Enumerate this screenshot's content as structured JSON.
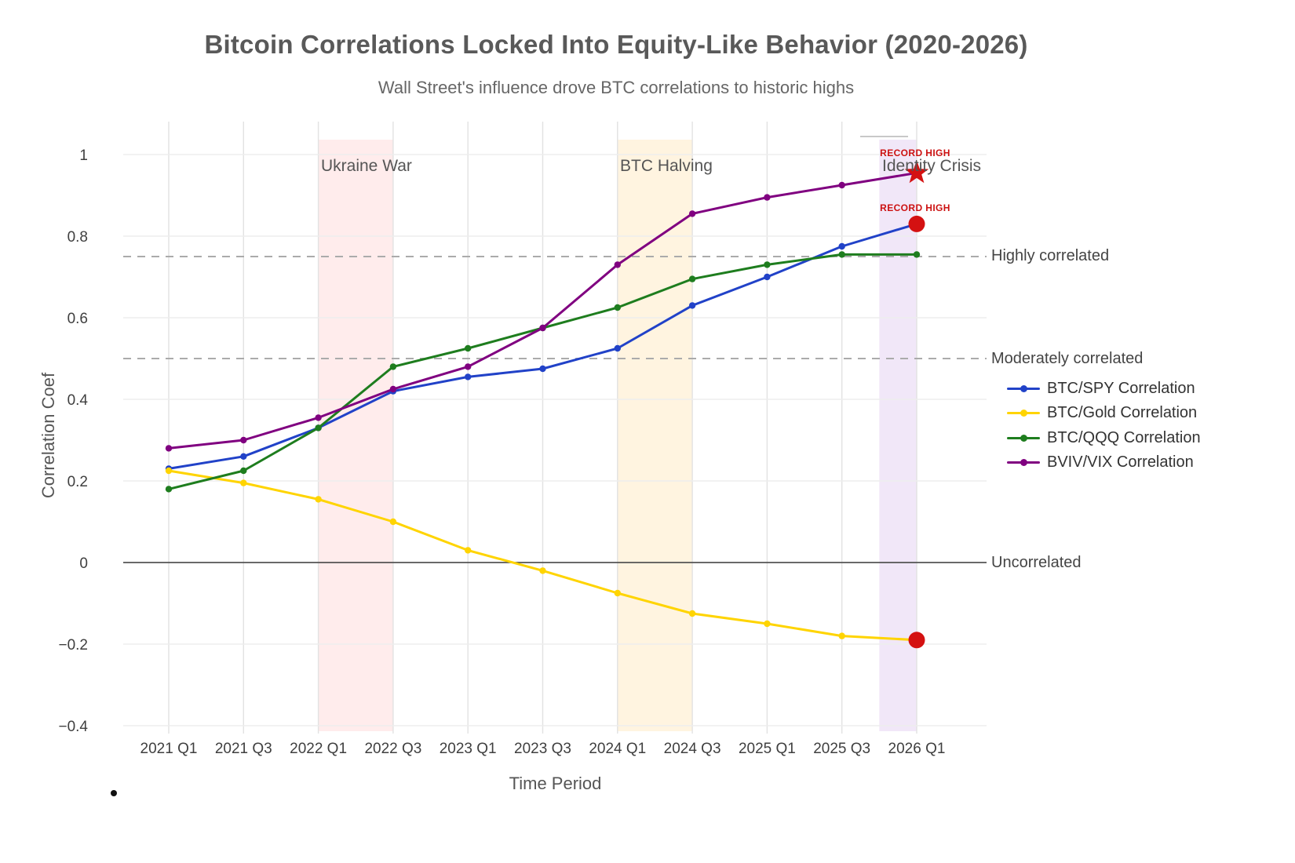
{
  "page": {
    "title": "Bitcoin Correlations Locked Into Equity-Like Behavior (2020-2026)",
    "subtitle": "Wall Street's influence drove BTC correlations to historic highs"
  },
  "chart_data": {
    "type": "line",
    "title": "Bitcoin Correlations Locked Into Equity-Like Behavior (2020-2026)",
    "subtitle": "Wall Street's influence drove BTC correlations to historic highs",
    "xlabel": "Time Period",
    "ylabel": "Correlation Coef",
    "ylim": [
      -0.4,
      1.0
    ],
    "yticks": [
      1,
      0.8,
      0.6,
      0.4,
      0.2,
      0,
      -0.2,
      -0.4
    ],
    "grid": true,
    "legend_position": "right",
    "categories": [
      "2021 Q1",
      "2021 Q3",
      "2022 Q1",
      "2022 Q3",
      "2023 Q1",
      "2023 Q3",
      "2024 Q1",
      "2024 Q3",
      "2025 Q1",
      "2025 Q3",
      "2026 Q1"
    ],
    "series": [
      {
        "name": "BTC/SPY Correlation",
        "color": "#2142c8",
        "values": [
          0.23,
          0.26,
          0.33,
          0.42,
          0.455,
          0.475,
          0.525,
          0.63,
          0.7,
          0.775,
          0.83
        ],
        "end_marker": "circle",
        "end_marker_color": "#d41111"
      },
      {
        "name": "BTC/Gold Correlation",
        "color": "#ffd400",
        "values": [
          0.225,
          0.195,
          0.155,
          0.1,
          0.03,
          -0.02,
          -0.075,
          -0.125,
          -0.15,
          -0.18,
          -0.19
        ],
        "end_marker": "circle",
        "end_marker_color": "#d41111"
      },
      {
        "name": "BTC/QQQ Correlation",
        "color": "#1e7d1e",
        "values": [
          0.18,
          0.225,
          0.33,
          0.48,
          0.525,
          0.575,
          0.625,
          0.695,
          0.73,
          0.755,
          0.755
        ],
        "end_marker": null,
        "end_marker_color": null
      },
      {
        "name": "BVIV/VIX Correlation",
        "color": "#800080",
        "values": [
          0.28,
          0.3,
          0.355,
          0.425,
          0.48,
          0.575,
          0.73,
          0.855,
          0.895,
          0.925,
          0.955
        ],
        "end_marker": "star",
        "end_marker_color": "#d41111"
      }
    ],
    "regions": [
      {
        "label": "Ukraine War",
        "start": "2022 Q1",
        "end": "2022 Q3",
        "color": "rgba(255,70,70,0.10)"
      },
      {
        "label": "BTC Halving",
        "start": "2024 Q1",
        "end": "2024 Q3",
        "color": "rgba(255,185,60,0.16)"
      },
      {
        "label": "Identity Crisis",
        "start": "2025 Q4",
        "end": "2026 Q1",
        "color": "rgba(150,70,200,0.13)"
      }
    ],
    "hlines": [
      {
        "y": 0.75,
        "label": "Highly correlated",
        "style": "dashed"
      },
      {
        "y": 0.5,
        "label": "Moderately correlated",
        "style": "dashed"
      },
      {
        "y": 0,
        "label": "Uncorrelated",
        "style": "solid"
      }
    ],
    "annotations": [
      {
        "text": "RECORD HIGH",
        "x": "2026 Q1",
        "y": 1.0,
        "color": "#cc1111"
      },
      {
        "text": "RECORD HIGH",
        "x": "2026 Q1",
        "y": 0.865,
        "color": "#cc1111"
      }
    ]
  }
}
